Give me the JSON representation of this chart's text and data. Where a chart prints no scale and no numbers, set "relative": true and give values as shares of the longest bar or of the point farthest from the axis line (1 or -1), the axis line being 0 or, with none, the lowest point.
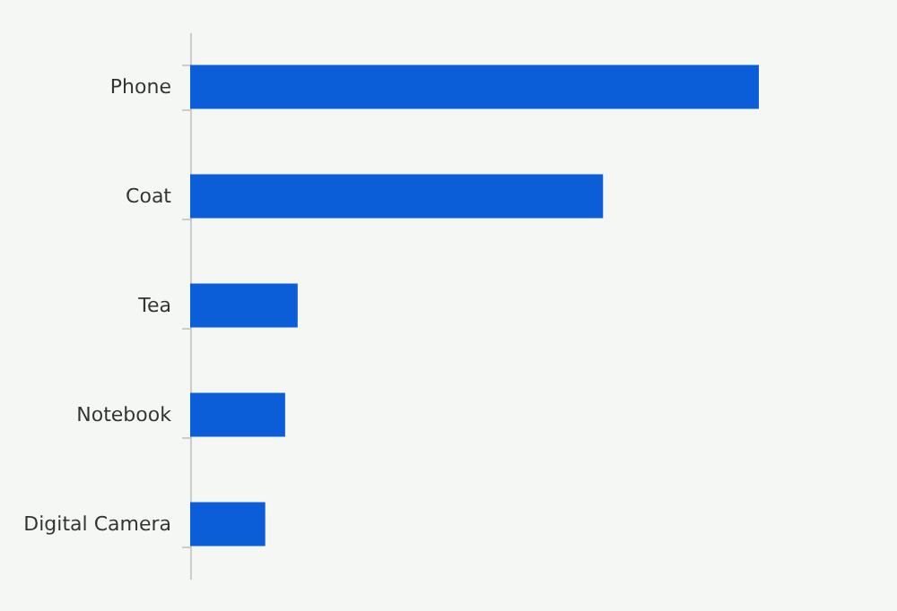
{
  "chart_data": {
    "type": "bar",
    "orientation": "horizontal",
    "relative": true,
    "categories": [
      "Phone",
      "Coat",
      "Tea",
      "Notebook",
      "Digital Camera"
    ],
    "values": [
      1,
      0.726,
      0.189,
      0.167,
      0.132
    ],
    "color": "#0b5ed7"
  }
}
